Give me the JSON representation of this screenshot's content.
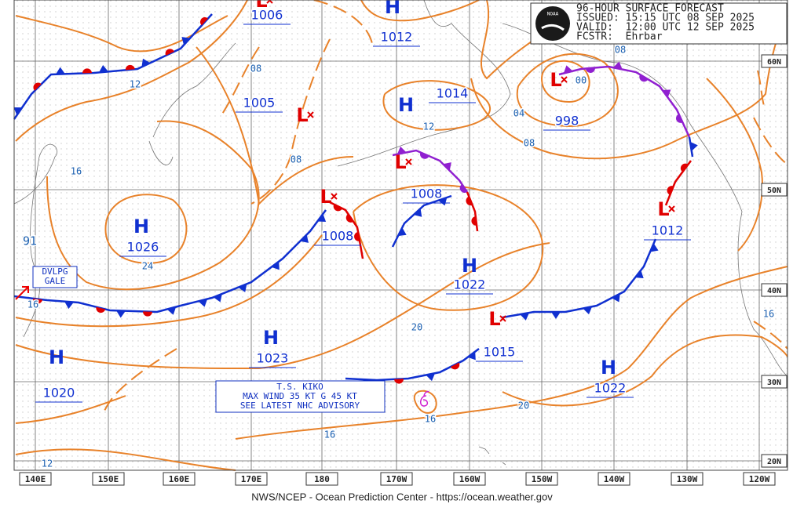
{
  "header": {
    "lines": [
      "96-HOUR SURFACE FORECAST",
      "ISSUED: 15:15 UTC 08 SEP 2025",
      "VALID:  12:00 UTC 12 SEP 2025",
      "FCSTR:  Ehrbar"
    ]
  },
  "logo": "NOAA",
  "centers": [
    {
      "type": "L",
      "pressure": "1006"
    },
    {
      "type": "H",
      "pressure": "1012"
    },
    {
      "type": "H",
      "pressure": "1014"
    },
    {
      "type": "L",
      "pressure": "1005"
    },
    {
      "type": "L",
      "pressure": "998"
    },
    {
      "type": "L",
      "pressure": "1008"
    },
    {
      "type": "L",
      "pressure": "1008"
    },
    {
      "type": "H",
      "pressure": "1026"
    },
    {
      "type": "H",
      "pressure": "1022"
    },
    {
      "type": "L",
      "pressure": "1012"
    },
    {
      "type": "L",
      "pressure": "1015"
    },
    {
      "type": "H",
      "pressure": "1023"
    },
    {
      "type": "H",
      "pressure": "1020"
    },
    {
      "type": "H",
      "pressure": "1022"
    }
  ],
  "isobar_labels": [
    "08",
    "12",
    "16",
    "08",
    "24",
    "16",
    "12",
    "04",
    "00",
    "08",
    "08",
    "20",
    "16",
    "16",
    "20",
    "12",
    "16",
    "91"
  ],
  "latitudes": [
    "60N",
    "50N",
    "40N",
    "30N",
    "20N"
  ],
  "longitudes": [
    "140E",
    "150E",
    "160E",
    "170E",
    "180",
    "170W",
    "160W",
    "150W",
    "140W",
    "130W",
    "120W"
  ],
  "boxes": {
    "gale": [
      "DVLPG",
      "GALE"
    ],
    "kiko": [
      "T.S. KIKO",
      "MAX WIND 35 KT G 45 KT",
      "SEE LATEST NHC ADVISORY"
    ]
  },
  "footer": "NWS/NCEP - Ocean Prediction Center - https://ocean.weather.gov"
}
